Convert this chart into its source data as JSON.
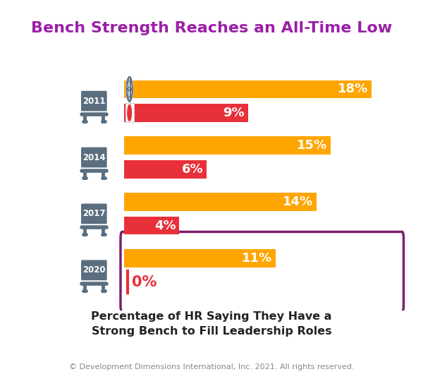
{
  "title": "Bench Strength Reaches an All-Time Low",
  "title_color": "#9B1FA8",
  "title_fontsize": 16,
  "background_color": "#FFFFFF",
  "outer_bg": "#F0F0F0",
  "years": [
    "2011",
    "2014",
    "2017",
    "2020"
  ],
  "global_values": [
    18,
    15,
    14,
    11
  ],
  "japan_values": [
    9,
    6,
    4,
    0
  ],
  "global_color": "#FFA500",
  "japan_color": "#E8303A",
  "year_bg_color": "#5A6E80",
  "year_text_color": "#FFFFFF",
  "bar_max_pct": 18,
  "xlabel_line1": "Percentage of HR Saying They Have a",
  "xlabel_line2": "Strong Bench to Fill Leadership Roles",
  "xlabel_fontsize": 11.5,
  "copyright": "© Development Dimensions International, Inc. 2021. All rights reserved.",
  "copyright_fontsize": 8,
  "highlight_box_color": "#7B1F6E",
  "bench_color": "#5A6E80",
  "bar_label_fontsize": 13,
  "year_fontsize": 8.5,
  "globe_color": "#5A6E80",
  "globe_bg": "#FFA500"
}
